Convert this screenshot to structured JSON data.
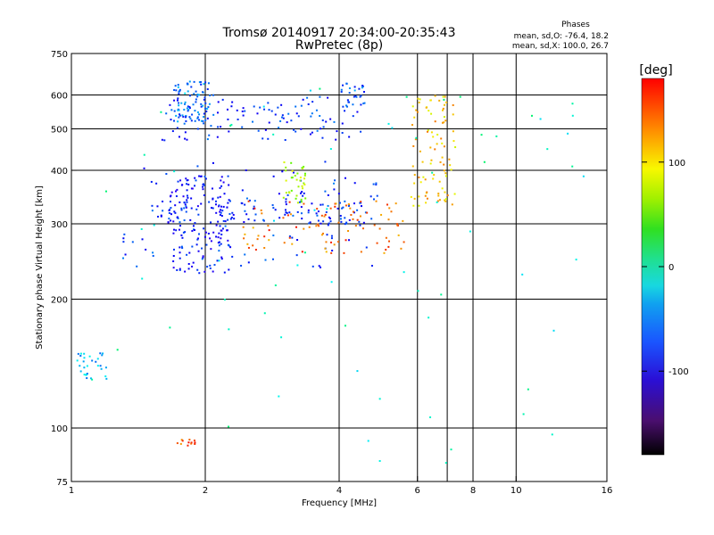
{
  "chart_data": {
    "type": "scatter",
    "title": "Tromsø 20140917 20:34:00-20:35:43",
    "subtitle": "RwPretec (8p)",
    "xlabel": "Frequency [MHz]",
    "ylabel": "Stationary phase Virtual Height [km]",
    "x_scale": "log",
    "y_scale": "log",
    "xlim": [
      1,
      16
    ],
    "ylim": [
      75,
      750
    ],
    "x_ticks": [
      1,
      2,
      4,
      6,
      8,
      10,
      16
    ],
    "x_tick_labels": [
      "1",
      "2",
      "4",
      "6",
      "8",
      "10",
      "16"
    ],
    "x_grid": [
      2,
      4,
      6,
      7,
      8,
      10
    ],
    "y_ticks": [
      75,
      100,
      200,
      300,
      400,
      500,
      600,
      750
    ],
    "y_tick_labels": [
      "75",
      "100",
      "200",
      "300",
      "400",
      "500",
      "600",
      "750"
    ],
    "y_grid": [
      100,
      200,
      300,
      400,
      500,
      600
    ],
    "grid": true,
    "stats": {
      "heading": "Phases",
      "line1": "mean, sd,O: -76.4, 18.2",
      "line2": "mean, sd,X: 100.0, 26.7"
    },
    "colorbar": {
      "label": "[deg]",
      "range": [
        -180,
        180
      ],
      "ticks": [
        100,
        0,
        -100
      ],
      "tick_labels": [
        "100",
        "0",
        "-100"
      ],
      "colormap": "rainbow"
    },
    "series": [
      {
        "freq_range": [
          1.3,
          4.9
        ],
        "height_range": [
          235,
          420
        ],
        "phase": -95,
        "count": 130
      },
      {
        "freq_range": [
          1.55,
          4.5
        ],
        "height_range": [
          300,
          340
        ],
        "phase": -100,
        "count": 90
      },
      {
        "freq_range": [
          1.6,
          4.6
        ],
        "height_range": [
          470,
          600
        ],
        "phase": -95,
        "count": 120
      },
      {
        "freq_range": [
          1.65,
          2.3
        ],
        "height_range": [
          230,
          390
        ],
        "phase": -110,
        "count": 140
      },
      {
        "freq_range": [
          1.7,
          2.05
        ],
        "height_range": [
          520,
          650
        ],
        "phase": -75,
        "count": 80
      },
      {
        "freq_range": [
          2.4,
          5.7
        ],
        "height_range": [
          255,
          340
        ],
        "phase": 150,
        "count": 90
      },
      {
        "freq_range": [
          3.0,
          3.4
        ],
        "height_range": [
          335,
          420
        ],
        "phase": 85,
        "count": 35
      },
      {
        "freq_range": [
          5.8,
          7.3
        ],
        "height_range": [
          330,
          600
        ],
        "phase": 120,
        "count": 90
      },
      {
        "freq_range": [
          1.03,
          1.2
        ],
        "height_range": [
          128,
          150
        ],
        "phase": -55,
        "count": 30
      },
      {
        "freq_range": [
          1.72,
          1.9
        ],
        "height_range": [
          91,
          94
        ],
        "phase": 150,
        "count": 12
      },
      {
        "freq_range": [
          4.0,
          4.6
        ],
        "height_range": [
          560,
          640
        ],
        "phase": -80,
        "count": 25
      },
      {
        "freq_range": [
          1.1,
          15
        ],
        "height_range": [
          80,
          650
        ],
        "phase": -20,
        "count": 70
      }
    ]
  }
}
